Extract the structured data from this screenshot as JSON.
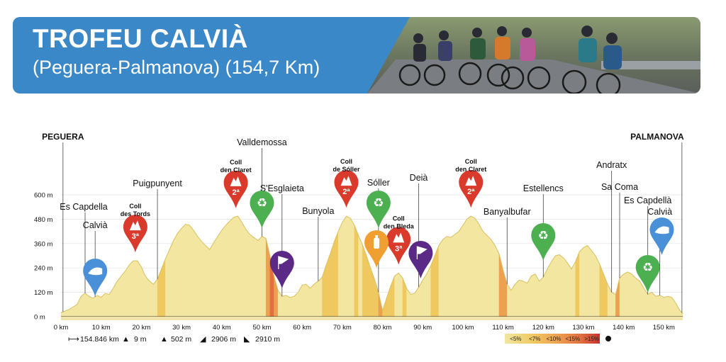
{
  "header": {
    "title": "TROFEU CALVIÀ",
    "subtitle": "(Peguera-Palmanova) (154,7 Km)",
    "accent_color": "#3b88c8",
    "photo": "cyclists-peloton-photo"
  },
  "chart_data": {
    "type": "area",
    "title": "",
    "xlabel": "",
    "ylabel": "",
    "x_unit": "km",
    "y_unit": "m",
    "xlim": [
      0,
      154.7
    ],
    "ylim": [
      0,
      600
    ],
    "x_ticks": [
      {
        "value": 0,
        "label": "0 km"
      },
      {
        "value": 10,
        "label": "10 km"
      },
      {
        "value": 20,
        "label": "20 km"
      },
      {
        "value": 30,
        "label": "30 km"
      },
      {
        "value": 40,
        "label": "40 km"
      },
      {
        "value": 50,
        "label": "50 km"
      },
      {
        "value": 60,
        "label": "60 km"
      },
      {
        "value": 70,
        "label": "70 km"
      },
      {
        "value": 80,
        "label": "80 km"
      },
      {
        "value": 90,
        "label": "90 km"
      },
      {
        "value": 100,
        "label": "100 km"
      },
      {
        "value": 110,
        "label": "110 km"
      },
      {
        "value": 120,
        "label": "120 km"
      },
      {
        "value": 130,
        "label": "130 km"
      },
      {
        "value": 140,
        "label": "140 km"
      },
      {
        "value": 150,
        "label": "150 km"
      }
    ],
    "y_ticks": [
      {
        "value": 0,
        "label": "0 m"
      },
      {
        "value": 120,
        "label": "120 m"
      },
      {
        "value": 240,
        "label": "240 m"
      },
      {
        "value": 360,
        "label": "360 m"
      },
      {
        "value": 480,
        "label": "480 m"
      },
      {
        "value": 600,
        "label": "600 m"
      }
    ],
    "profile": [
      [
        0,
        20
      ],
      [
        2,
        35
      ],
      [
        4,
        60
      ],
      [
        5,
        100
      ],
      [
        6,
        115
      ],
      [
        7,
        100
      ],
      [
        8,
        90
      ],
      [
        9,
        105
      ],
      [
        10,
        95
      ],
      [
        11,
        115
      ],
      [
        12,
        110
      ],
      [
        13,
        140
      ],
      [
        14,
        175
      ],
      [
        15,
        200
      ],
      [
        16,
        225
      ],
      [
        17,
        255
      ],
      [
        18,
        275
      ],
      [
        19,
        275
      ],
      [
        20,
        245
      ],
      [
        21,
        200
      ],
      [
        22,
        175
      ],
      [
        23,
        160
      ],
      [
        24,
        185
      ],
      [
        25,
        235
      ],
      [
        26,
        285
      ],
      [
        27,
        330
      ],
      [
        28,
        375
      ],
      [
        29,
        410
      ],
      [
        30,
        435
      ],
      [
        31,
        455
      ],
      [
        32,
        450
      ],
      [
        33,
        425
      ],
      [
        34,
        395
      ],
      [
        35,
        370
      ],
      [
        36,
        350
      ],
      [
        37,
        330
      ],
      [
        38,
        365
      ],
      [
        39,
        395
      ],
      [
        40,
        425
      ],
      [
        41,
        450
      ],
      [
        42,
        470
      ],
      [
        43,
        490
      ],
      [
        44,
        495
      ],
      [
        45,
        465
      ],
      [
        46,
        430
      ],
      [
        47,
        405
      ],
      [
        48,
        390
      ],
      [
        49,
        375
      ],
      [
        50,
        395
      ],
      [
        51,
        385
      ],
      [
        52,
        300
      ],
      [
        53,
        200
      ],
      [
        54,
        130
      ],
      [
        55,
        100
      ],
      [
        56,
        105
      ],
      [
        57,
        95
      ],
      [
        58,
        100
      ],
      [
        59,
        120
      ],
      [
        60,
        155
      ],
      [
        61,
        160
      ],
      [
        62,
        140
      ],
      [
        63,
        160
      ],
      [
        64,
        175
      ],
      [
        65,
        195
      ],
      [
        66,
        255
      ],
      [
        67,
        310
      ],
      [
        68,
        370
      ],
      [
        69,
        420
      ],
      [
        70,
        465
      ],
      [
        71,
        495
      ],
      [
        72,
        485
      ],
      [
        73,
        450
      ],
      [
        74,
        400
      ],
      [
        75,
        355
      ],
      [
        76,
        300
      ],
      [
        77,
        240
      ],
      [
        78,
        185
      ],
      [
        79,
        120
      ],
      [
        80,
        30
      ],
      [
        81,
        90
      ],
      [
        82,
        150
      ],
      [
        83,
        200
      ],
      [
        84,
        215
      ],
      [
        85,
        190
      ],
      [
        86,
        140
      ],
      [
        87,
        110
      ],
      [
        88,
        115
      ],
      [
        89,
        145
      ],
      [
        90,
        180
      ],
      [
        91,
        210
      ],
      [
        92,
        250
      ],
      [
        93,
        300
      ],
      [
        94,
        350
      ],
      [
        95,
        380
      ],
      [
        96,
        395
      ],
      [
        97,
        390
      ],
      [
        98,
        405
      ],
      [
        99,
        420
      ],
      [
        100,
        450
      ],
      [
        101,
        480
      ],
      [
        102,
        495
      ],
      [
        103,
        485
      ],
      [
        104,
        455
      ],
      [
        105,
        420
      ],
      [
        106,
        400
      ],
      [
        107,
        380
      ],
      [
        108,
        350
      ],
      [
        109,
        310
      ],
      [
        110,
        230
      ],
      [
        111,
        160
      ],
      [
        112,
        130
      ],
      [
        113,
        160
      ],
      [
        114,
        180
      ],
      [
        115,
        175
      ],
      [
        116,
        165
      ],
      [
        117,
        200
      ],
      [
        118,
        210
      ],
      [
        119,
        175
      ],
      [
        120,
        195
      ],
      [
        121,
        235
      ],
      [
        122,
        270
      ],
      [
        123,
        300
      ],
      [
        124,
        305
      ],
      [
        125,
        290
      ],
      [
        126,
        265
      ],
      [
        127,
        235
      ],
      [
        128,
        270
      ],
      [
        129,
        320
      ],
      [
        130,
        340
      ],
      [
        131,
        350
      ],
      [
        132,
        325
      ],
      [
        133,
        300
      ],
      [
        134,
        260
      ],
      [
        135,
        210
      ],
      [
        136,
        160
      ],
      [
        137,
        120
      ],
      [
        138,
        110
      ],
      [
        139,
        190
      ],
      [
        140,
        210
      ],
      [
        141,
        220
      ],
      [
        142,
        210
      ],
      [
        143,
        190
      ],
      [
        144,
        175
      ],
      [
        145,
        140
      ],
      [
        146,
        110
      ],
      [
        147,
        120
      ],
      [
        148,
        100
      ],
      [
        149,
        105
      ],
      [
        150,
        95
      ],
      [
        151,
        100
      ],
      [
        152,
        95
      ],
      [
        153,
        65
      ],
      [
        154,
        30
      ],
      [
        154.7,
        15
      ]
    ],
    "places": [
      {
        "name": "PEGUERA",
        "km": 0.5,
        "bold": true
      },
      {
        "name": "Es Capdella",
        "km": 6
      },
      {
        "name": "Calvià",
        "km": 8.5
      },
      {
        "name": "Puigpunyent",
        "km": 24
      },
      {
        "name": "Valldemossa",
        "km": 50
      },
      {
        "name": "S'Esglaieta",
        "km": 55
      },
      {
        "name": "Bunyola",
        "km": 64
      },
      {
        "name": "Sóller",
        "km": 79
      },
      {
        "name": "Deià",
        "km": 89
      },
      {
        "name": "Banyalbufar",
        "km": 111
      },
      {
        "name": "Estellencs",
        "km": 120
      },
      {
        "name": "Andratx",
        "km": 137
      },
      {
        "name": "Sa Coma",
        "km": 139
      },
      {
        "name": "Es Capdellà",
        "km": 146
      },
      {
        "name": "Calvià",
        "km": 149
      },
      {
        "name": "PALMANOVA",
        "km": 154.5,
        "bold": true
      }
    ],
    "climbs": [
      {
        "name_line1": "Coll",
        "name_line2": "des Tords",
        "category": "3ª",
        "km": 18.5
      },
      {
        "name_line1": "Coll",
        "name_line2": "den Claret",
        "category": "2ª",
        "km": 43.5
      },
      {
        "name_line1": "Coll",
        "name_line2": "de Sóller",
        "category": "2ª",
        "km": 71
      },
      {
        "name_line1": "Coll",
        "name_line2": "den Bleda",
        "category": "3ª",
        "km": 84
      },
      {
        "name_line1": "Coll",
        "name_line2": "den Claret",
        "category": "2ª",
        "km": 102
      }
    ],
    "markers": [
      {
        "type": "sprint",
        "icon": "sprint-flag-icon",
        "km": 8.5,
        "color": "#4a90d9"
      },
      {
        "type": "feed",
        "icon": "recycle-icon",
        "km": 50,
        "color": "#4caf50"
      },
      {
        "type": "sprint-flag",
        "icon": "flag-icon",
        "km": 55,
        "color": "#5b2a86"
      },
      {
        "type": "feed",
        "icon": "recycle-icon",
        "km": 79,
        "color": "#4caf50"
      },
      {
        "type": "bottle",
        "icon": "bottle-icon",
        "km": 78.5,
        "color": "#f0a030"
      },
      {
        "type": "sprint-flag",
        "icon": "flag-icon",
        "km": 89.5,
        "color": "#5b2a86"
      },
      {
        "type": "feed",
        "icon": "recycle-icon",
        "km": 120,
        "color": "#4caf50"
      },
      {
        "type": "feed",
        "icon": "recycle-icon",
        "km": 146,
        "color": "#4caf50"
      },
      {
        "type": "sprint",
        "icon": "sprint-flag-icon",
        "km": 149.5,
        "color": "#4a90d9"
      }
    ],
    "stats": {
      "distance": "154.846 km",
      "min_alt": "9 m",
      "max_alt": "502 m",
      "ascent": "2906 m",
      "descent": "2910 m"
    },
    "gradient_legend": [
      {
        "label": "<5%",
        "color": "#f2e6a0"
      },
      {
        "label": "<7%",
        "color": "#f0c860"
      },
      {
        "label": "<10%",
        "color": "#eda050"
      },
      {
        "label": "<15%",
        "color": "#e07040"
      },
      {
        "label": ">15%",
        "color": "#c83030"
      }
    ],
    "colors": {
      "climb_marker": "#d93a2b",
      "fill_base": "#f3e7a8",
      "fill_steep": "#e88a3c"
    }
  }
}
